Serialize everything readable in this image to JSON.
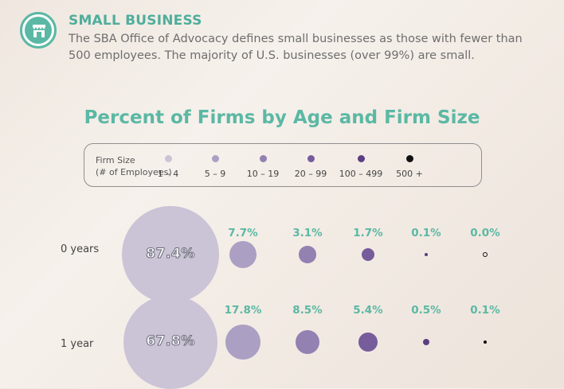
{
  "header": {
    "title": "SMALL BUSINESS",
    "description": "The SBA Office of Advocacy defines small businesses as those with fewer than 500 employees. The majority of U.S. businesses (over 99%) are small.",
    "icon": "storefront-icon"
  },
  "colors": {
    "accent": "#5bb8a4",
    "size_1_4": "#cbc3d6",
    "size_5_9": "#ab9fc3",
    "size_10_19": "#9381b2",
    "size_20_99": "#775c9c",
    "size_100_499": "#5c3e82",
    "size_500_plus": "#111111"
  },
  "chart_data": {
    "type": "bubble",
    "title": "Percent of Firms by Age and Firm Size",
    "legend_title_line1": "Firm Size",
    "legend_title_line2": "(# of Employees)",
    "sizes": [
      "1 – 4",
      "5 – 9",
      "10 – 19",
      "20 – 99",
      "100 – 499",
      "500 +"
    ],
    "rows": [
      {
        "label": "0 years",
        "values": [
          87.4,
          7.7,
          3.1,
          1.7,
          0.1,
          0.0
        ],
        "labels": [
          "87.4%",
          "7.7%",
          "3.1%",
          "1.7%",
          "0.1%",
          "0.0%"
        ]
      },
      {
        "label": "1 year",
        "values": [
          67.8,
          17.8,
          8.5,
          5.4,
          0.5,
          0.1
        ],
        "labels": [
          "67.8%",
          "17.8%",
          "8.5%",
          "5.4%",
          "0.5%",
          "0.1%"
        ]
      }
    ],
    "unit": "percent of firms"
  }
}
